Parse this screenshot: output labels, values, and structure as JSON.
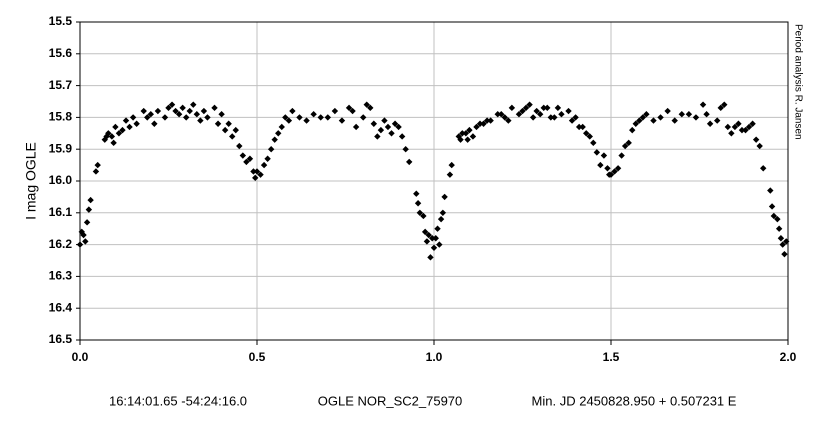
{
  "chart_data": {
    "type": "scatter",
    "ylabel": "I mag OGLE",
    "side_note": "Period analysis  R. Jansen",
    "footer": [
      "16:14:01.65 -54:24:16.0",
      "OGLE NOR_SC2_75970",
      "Min. JD 2450828.950 + 0.507231 E"
    ],
    "color": "#000000",
    "grid": true,
    "xlim": [
      0,
      2
    ],
    "xticks": [
      {
        "value": 0,
        "label": "0.0"
      },
      0.5,
      {
        "value": 1,
        "label": "1.0"
      },
      1.5,
      {
        "value": 2,
        "label": "2.0"
      }
    ],
    "ylim": [
      16.5,
      15.5
    ],
    "yticks": [
      16.5,
      16.4,
      16.3,
      16.2,
      16.1,
      {
        "value": 16,
        "label": "16.0"
      },
      15.9,
      15.8,
      15.7,
      15.6,
      15.5
    ],
    "x": [
      0,
      0.005,
      0.01,
      0.015,
      0.02,
      0.025,
      0.03,
      0.045,
      0.05,
      0.07,
      0.075,
      0.08,
      0.09,
      0.095,
      0.1,
      0.11,
      0.12,
      0.13,
      0.14,
      0.15,
      0.16,
      0.18,
      0.19,
      0.2,
      0.21,
      0.22,
      0.24,
      0.25,
      0.26,
      0.27,
      0.28,
      0.29,
      0.3,
      0.31,
      0.32,
      0.33,
      0.34,
      0.35,
      0.36,
      0.38,
      0.39,
      0.4,
      0.41,
      0.42,
      0.43,
      0.44,
      0.45,
      0.46,
      0.47,
      0.48,
      0.49,
      0.495,
      0.5,
      0.51,
      0.52,
      0.53,
      0.54,
      0.55,
      0.56,
      0.57,
      0.58,
      0.59,
      0.6,
      0.62,
      0.64,
      0.66,
      0.68,
      0.7,
      0.72,
      0.74,
      0.76,
      0.77,
      0.78,
      0.8,
      0.81,
      0.82,
      0.83,
      0.84,
      0.85,
      0.86,
      0.87,
      0.88,
      0.89,
      0.9,
      0.91,
      0.92,
      0.93,
      0.95,
      0.955,
      0.96,
      0.97,
      0.975,
      0.98,
      0.985,
      0.99,
      0.995,
      1.0,
      1.005,
      1.01,
      1.015,
      1.02,
      1.025,
      1.03,
      1.045,
      1.05,
      1.07,
      1.075,
      1.08,
      1.09,
      1.095,
      1.1,
      1.11,
      1.12,
      1.13,
      1.14,
      1.15,
      1.16,
      1.18,
      1.19,
      1.2,
      1.21,
      1.22,
      1.24,
      1.25,
      1.26,
      1.27,
      1.28,
      1.29,
      1.3,
      1.31,
      1.32,
      1.33,
      1.34,
      1.35,
      1.36,
      1.38,
      1.39,
      1.4,
      1.41,
      1.42,
      1.43,
      1.44,
      1.45,
      1.46,
      1.47,
      1.48,
      1.49,
      1.495,
      1.5,
      1.51,
      1.52,
      1.53,
      1.54,
      1.55,
      1.56,
      1.57,
      1.58,
      1.59,
      1.6,
      1.62,
      1.64,
      1.66,
      1.68,
      1.7,
      1.72,
      1.74,
      1.76,
      1.77,
      1.78,
      1.8,
      1.81,
      1.82,
      1.83,
      1.84,
      1.85,
      1.86,
      1.87,
      1.88,
      1.89,
      1.9,
      1.91,
      1.92,
      1.93,
      1.95,
      1.955,
      1.96,
      1.97,
      1.975,
      1.98,
      1.985,
      1.99,
      1.995
    ],
    "values": [
      16.2,
      16.16,
      16.17,
      16.19,
      16.13,
      16.09,
      16.06,
      15.97,
      15.95,
      15.87,
      15.86,
      15.85,
      15.86,
      15.88,
      15.83,
      15.85,
      15.84,
      15.81,
      15.83,
      15.8,
      15.82,
      15.78,
      15.8,
      15.79,
      15.82,
      15.78,
      15.8,
      15.77,
      15.76,
      15.78,
      15.79,
      15.77,
      15.8,
      15.78,
      15.76,
      15.79,
      15.81,
      15.78,
      15.8,
      15.77,
      15.82,
      15.79,
      15.84,
      15.82,
      15.86,
      15.84,
      15.89,
      15.92,
      15.94,
      15.93,
      15.97,
      15.99,
      15.97,
      15.98,
      15.95,
      15.93,
      15.9,
      15.87,
      15.85,
      15.83,
      15.8,
      15.81,
      15.78,
      15.8,
      15.81,
      15.79,
      15.8,
      15.8,
      15.78,
      15.81,
      15.77,
      15.78,
      15.83,
      15.8,
      15.76,
      15.77,
      15.82,
      15.86,
      15.84,
      15.81,
      15.83,
      15.85,
      15.82,
      15.83,
      15.86,
      15.9,
      15.94,
      16.04,
      16.07,
      16.1,
      16.11,
      16.16,
      16.19,
      16.17,
      16.24,
      16.18,
      16.21,
      16.18,
      16.15,
      16.2,
      16.12,
      16.1,
      16.05,
      15.98,
      15.95,
      15.86,
      15.87,
      15.85,
      15.85,
      15.87,
      15.84,
      15.86,
      15.83,
      15.82,
      15.82,
      15.81,
      15.81,
      15.79,
      15.79,
      15.8,
      15.81,
      15.77,
      15.79,
      15.78,
      15.77,
      15.76,
      15.8,
      15.78,
      15.79,
      15.77,
      15.77,
      15.8,
      15.8,
      15.77,
      15.79,
      15.78,
      15.81,
      15.8,
      15.83,
      15.83,
      15.85,
      15.86,
      15.88,
      15.91,
      15.95,
      15.92,
      15.96,
      15.98,
      15.98,
      15.97,
      15.96,
      15.92,
      15.89,
      15.88,
      15.84,
      15.82,
      15.81,
      15.8,
      15.79,
      15.81,
      15.8,
      15.78,
      15.81,
      15.79,
      15.79,
      15.8,
      15.76,
      15.79,
      15.82,
      15.81,
      15.77,
      15.76,
      15.83,
      15.85,
      15.83,
      15.82,
      15.84,
      15.84,
      15.83,
      15.82,
      15.87,
      15.89,
      15.96,
      16.03,
      16.08,
      16.11,
      16.12,
      16.15,
      16.18,
      16.2,
      16.23,
      16.19
    ]
  }
}
